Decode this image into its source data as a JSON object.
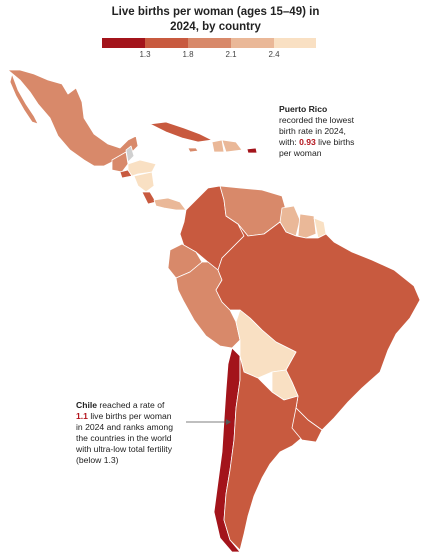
{
  "title_line1": "Live births per woman (ages 15–49) in",
  "title_line2": "2024, by country",
  "legend": {
    "bins": [
      {
        "color": "#a3141b"
      },
      {
        "color": "#c85a3f"
      },
      {
        "color": "#d8896a"
      },
      {
        "color": "#eab898"
      },
      {
        "color": "#f9e0c3"
      }
    ],
    "ticks": [
      "1.3",
      "1.8",
      "2.1",
      "2.4"
    ]
  },
  "countries": [
    {
      "name": "Mexico",
      "color": "#d8896a"
    },
    {
      "name": "Guatemala",
      "color": "#d8896a"
    },
    {
      "name": "Belize",
      "color": "#d0d0d0"
    },
    {
      "name": "Honduras",
      "color": "#f9e0c3"
    },
    {
      "name": "El Salvador",
      "color": "#c85a3f"
    },
    {
      "name": "Nicaragua",
      "color": "#f9e0c3"
    },
    {
      "name": "Costa Rica",
      "color": "#c85a3f"
    },
    {
      "name": "Panama",
      "color": "#eab898"
    },
    {
      "name": "Cuba",
      "color": "#c85a3f"
    },
    {
      "name": "Jamaica",
      "color": "#d8896a"
    },
    {
      "name": "Haiti",
      "color": "#eab898"
    },
    {
      "name": "Dominican Republic",
      "color": "#eab898"
    },
    {
      "name": "Puerto Rico",
      "color": "#a3141b"
    },
    {
      "name": "Colombia",
      "color": "#c85a3f"
    },
    {
      "name": "Venezuela",
      "color": "#d8896a"
    },
    {
      "name": "Guyana",
      "color": "#eab898"
    },
    {
      "name": "Suriname",
      "color": "#eab898"
    },
    {
      "name": "French Guiana",
      "color": "#f9e0c3"
    },
    {
      "name": "Ecuador",
      "color": "#d8896a"
    },
    {
      "name": "Peru",
      "color": "#d8896a"
    },
    {
      "name": "Brazil",
      "color": "#c85a3f"
    },
    {
      "name": "Bolivia",
      "color": "#f9e0c3"
    },
    {
      "name": "Paraguay",
      "color": "#f9e0c3"
    },
    {
      "name": "Chile",
      "color": "#a3141b"
    },
    {
      "name": "Argentina",
      "color": "#c85a3f"
    },
    {
      "name": "Uruguay",
      "color": "#c85a3f"
    }
  ],
  "annotations": {
    "puerto_rico": {
      "bold": "Puerto Rico",
      "line1": "recorded the lowest",
      "line2": "birth rate in 2024,",
      "line3_pre": "with: ",
      "line3_value": "0.93",
      "line3_post": " live births",
      "line4": "per woman"
    },
    "chile": {
      "bold": "Chile",
      "line1_post": " reached a rate of",
      "line2_value": "1.1",
      "line2_post": " live births per woman",
      "line3": "in 2024 and ranks among",
      "line4": "the countries in the world",
      "line5": "with ultra-low total fertility",
      "line6": "(below 1.3)"
    }
  }
}
